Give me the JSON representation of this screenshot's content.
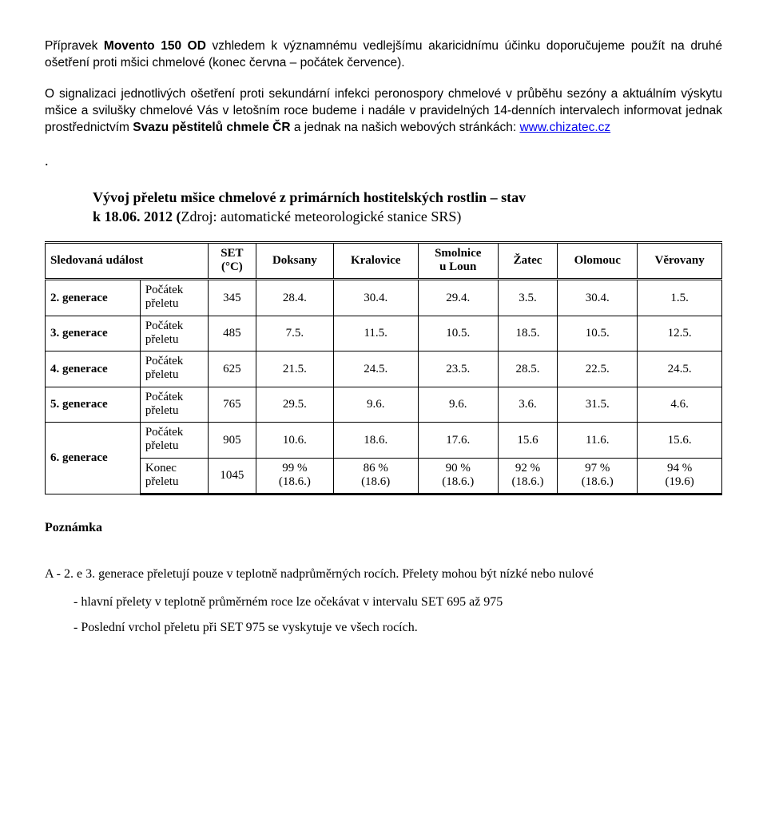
{
  "para1_prefix": "Přípravek ",
  "para1_bold": "Movento 150 OD",
  "para1_rest": " vzhledem k významnému vedlejšímu akaricidnímu účinku doporučujeme použít na druhé ošetření proti mšici chmelové (konec června – počátek července).",
  "para2_part1": "O signalizaci jednotlivých ošetření proti sekundární infekci peronospory chmelové v průběhu sezóny a aktuálním výskytu mšice a svilušky chmelové Vás v letošním roce budeme i nadále v pravidelných 14-denních intervalech informovat jednak prostřednictvím ",
  "para2_bold": "Svazu pěstitelů chmele ČR ",
  "para2_part2": "a jednak na našich webových stránkách: ",
  "para2_link": "www.chizatec.cz",
  "heading_line1": "Vývoj přeletu mšice chmelové z primárních hostitelských rostlin – stav",
  "heading_line2": "k 18.06. 2012 (",
  "heading_line2_rest": "Zdroj: automatické meteorologické stanice SRS)",
  "table": {
    "head": {
      "c0": "Sledovaná událost",
      "c1_l1": "SET",
      "c1_l2": "(°C)",
      "c2": "Doksany",
      "c3": "Kralovice",
      "c4_l1": "Smolnice",
      "c4_l2": "u Loun",
      "c5": "Žatec",
      "c6": "Olomouc",
      "c7": "Věrovany"
    },
    "rows": {
      "r0": {
        "label": "2. generace",
        "sub": "Počátek\npřeletu",
        "set": "345",
        "doksany": "28.4.",
        "kralovice": "30.4.",
        "smolnice": "29.4.",
        "zatec": "3.5.",
        "olomouc": "30.4.",
        "verovany": "1.5."
      },
      "r1": {
        "label": "3. generace",
        "sub": "Počátek\npřeletu",
        "set": "485",
        "doksany": "7.5.",
        "kralovice": "11.5.",
        "smolnice": "10.5.",
        "zatec": "18.5.",
        "olomouc": "10.5.",
        "verovany": "12.5."
      },
      "r2": {
        "label": "4. generace",
        "sub": "Počátek\npřeletu",
        "set": "625",
        "doksany": "21.5.",
        "kralovice": "24.5.",
        "smolnice": "23.5.",
        "zatec": "28.5.",
        "olomouc": "22.5.",
        "verovany": "24.5."
      },
      "r3": {
        "label": "5. generace",
        "sub": "Počátek\npřeletu",
        "set": "765",
        "doksany": "29.5.",
        "kralovice": "9.6.",
        "smolnice": "9.6.",
        "zatec": "3.6.",
        "olomouc": "31.5.",
        "verovany": "4.6."
      },
      "r4": {
        "label": "6. generace",
        "sub": "Počátek\npřeletu",
        "set": "905",
        "doksany": "10.6.",
        "kralovice": "18.6.",
        "smolnice": "17.6.",
        "zatec": "15.6",
        "olomouc": "11.6.",
        "verovany": "15.6."
      },
      "r5": {
        "sub": "Konec\npřeletu",
        "set": "1045",
        "doksany_l1": "99 %",
        "doksany_l2": "(18.6.)",
        "kralovice_l1": "86 %",
        "kralovice_l2": "(18.6)",
        "smolnice_l1": "90 %",
        "smolnice_l2": "(18.6.)",
        "zatec_l1": "92 %",
        "zatec_l2": "(18.6.)",
        "olomouc_l1": "97 %",
        "olomouc_l2": "(18.6.)",
        "verovany_l1": "94 %",
        "verovany_l2": "(19.6)"
      }
    }
  },
  "note_heading": "Poznámka",
  "note_a_prefix": "A -  ",
  "note_a_text": "2. e 3. generace přeletují pouze v teplotně nadprůměrných rocích. Přelety mohou být nízké nebo nulové",
  "note_b": "- hlavní přelety v teplotně průměrném roce lze očekávat v intervalu SET 695 až 975",
  "note_c": "- Poslední vrchol přeletu při SET 975 se vyskytuje ve všech rocích."
}
